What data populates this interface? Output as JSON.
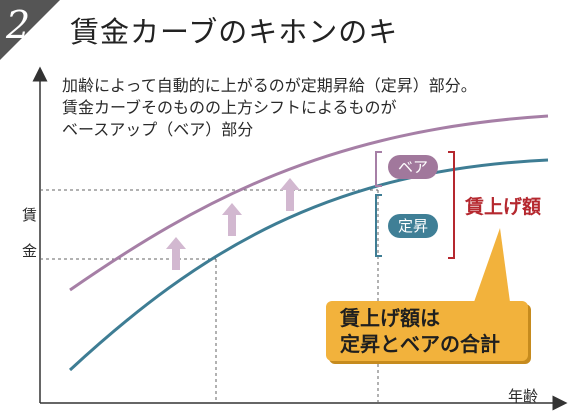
{
  "badge": {
    "number": "2"
  },
  "title": "賃金カーブのキホンのキ",
  "description": [
    "加齢によって自動的に上がるのが定期昇給（定昇）部分。",
    "賃金カーブそのものの上方シフトによるものが",
    "ベースアップ（ベア）部分"
  ],
  "y_axis_label": [
    "賃",
    "金"
  ],
  "x_axis_label": "年齢",
  "labels": {
    "bea": "ベア",
    "teishou": "定昇",
    "total": "賃上げ額"
  },
  "callout": [
    "賃上げ額は",
    "定昇とベアの合計"
  ],
  "colors": {
    "upper_curve": "#a67fa6",
    "lower_curve": "#3e7d94",
    "arrow": "#d2b8d0",
    "bracket": "#b5282f",
    "callout": "#f2b23c"
  }
}
